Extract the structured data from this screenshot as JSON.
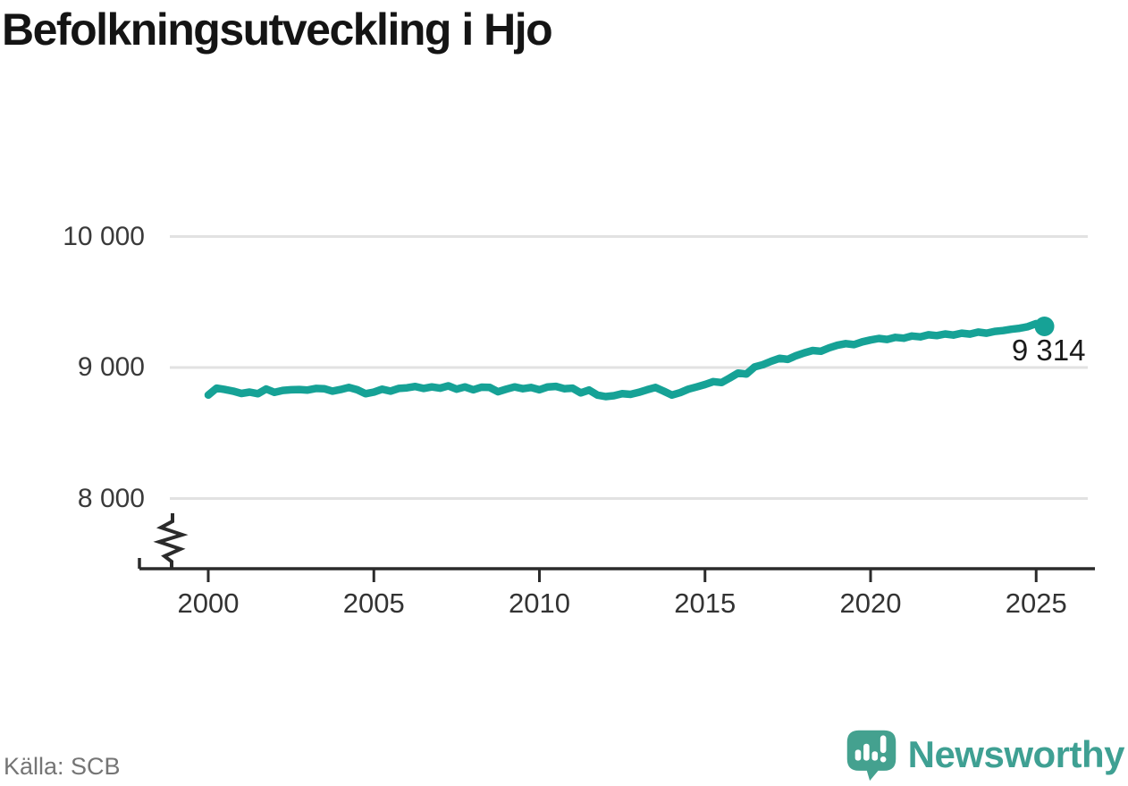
{
  "title": "Befolkningsutveckling i Hjo",
  "source": "Källa: SCB",
  "branding": {
    "name": "Newsworthy",
    "icon": "bar-chart-speech-bubble-icon",
    "color": "#3fa093"
  },
  "colors": {
    "line": "#16a296",
    "dot": "#16a296",
    "grid": "#e2e2e2",
    "axis": "#2b2b2b",
    "tick_text": "#3a3a3a",
    "end_label_text": "#1a1a1a"
  },
  "chart_data": {
    "type": "line",
    "title": "Befolkningsutveckling i Hjo",
    "source_label": "Källa: SCB",
    "end_label": "9 314",
    "end_value": 9314,
    "legend": "none",
    "grid": "horizontal",
    "x_axis": {
      "ticks": [
        2000,
        2005,
        2010,
        2015,
        2020,
        2025
      ],
      "range": [
        1998,
        2027
      ]
    },
    "y_axis": {
      "ticks": [
        {
          "label": "10 000",
          "value": 10000
        },
        {
          "label": "9 000",
          "value": 9000
        },
        {
          "label": "8 000",
          "value": 8000
        }
      ],
      "broken_axis": true
    },
    "series": [
      {
        "name": "population",
        "points": [
          [
            2000.0,
            8790
          ],
          [
            2000.25,
            8842
          ],
          [
            2000.5,
            8832
          ],
          [
            2000.75,
            8820
          ],
          [
            2001.0,
            8802
          ],
          [
            2001.25,
            8812
          ],
          [
            2001.5,
            8800
          ],
          [
            2001.75,
            8836
          ],
          [
            2002.0,
            8810
          ],
          [
            2002.25,
            8825
          ],
          [
            2002.5,
            8830
          ],
          [
            2002.75,
            8832
          ],
          [
            2003.0,
            8828
          ],
          [
            2003.25,
            8840
          ],
          [
            2003.5,
            8838
          ],
          [
            2003.75,
            8820
          ],
          [
            2004.0,
            8832
          ],
          [
            2004.25,
            8848
          ],
          [
            2004.5,
            8830
          ],
          [
            2004.75,
            8800
          ],
          [
            2005.0,
            8812
          ],
          [
            2005.25,
            8835
          ],
          [
            2005.5,
            8820
          ],
          [
            2005.75,
            8840
          ],
          [
            2006.0,
            8845
          ],
          [
            2006.25,
            8855
          ],
          [
            2006.5,
            8840
          ],
          [
            2006.75,
            8852
          ],
          [
            2007.0,
            8842
          ],
          [
            2007.25,
            8860
          ],
          [
            2007.5,
            8835
          ],
          [
            2007.75,
            8852
          ],
          [
            2008.0,
            8830
          ],
          [
            2008.25,
            8850
          ],
          [
            2008.5,
            8848
          ],
          [
            2008.75,
            8815
          ],
          [
            2009.0,
            8835
          ],
          [
            2009.25,
            8852
          ],
          [
            2009.5,
            8838
          ],
          [
            2009.75,
            8848
          ],
          [
            2010.0,
            8830
          ],
          [
            2010.25,
            8852
          ],
          [
            2010.5,
            8856
          ],
          [
            2010.75,
            8838
          ],
          [
            2011.0,
            8842
          ],
          [
            2011.25,
            8806
          ],
          [
            2011.5,
            8828
          ],
          [
            2011.75,
            8790
          ],
          [
            2012.0,
            8778
          ],
          [
            2012.25,
            8785
          ],
          [
            2012.5,
            8800
          ],
          [
            2012.75,
            8795
          ],
          [
            2013.0,
            8810
          ],
          [
            2013.25,
            8830
          ],
          [
            2013.5,
            8848
          ],
          [
            2013.75,
            8820
          ],
          [
            2014.0,
            8790
          ],
          [
            2014.25,
            8808
          ],
          [
            2014.5,
            8835
          ],
          [
            2014.75,
            8852
          ],
          [
            2015.0,
            8870
          ],
          [
            2015.25,
            8892
          ],
          [
            2015.5,
            8885
          ],
          [
            2015.75,
            8920
          ],
          [
            2016.0,
            8958
          ],
          [
            2016.25,
            8950
          ],
          [
            2016.5,
            9005
          ],
          [
            2016.75,
            9022
          ],
          [
            2017.0,
            9048
          ],
          [
            2017.25,
            9070
          ],
          [
            2017.5,
            9062
          ],
          [
            2017.75,
            9090
          ],
          [
            2018.0,
            9112
          ],
          [
            2018.25,
            9130
          ],
          [
            2018.5,
            9124
          ],
          [
            2018.75,
            9150
          ],
          [
            2019.0,
            9170
          ],
          [
            2019.25,
            9182
          ],
          [
            2019.5,
            9175
          ],
          [
            2019.75,
            9196
          ],
          [
            2020.0,
            9210
          ],
          [
            2020.25,
            9222
          ],
          [
            2020.5,
            9214
          ],
          [
            2020.75,
            9230
          ],
          [
            2021.0,
            9224
          ],
          [
            2021.25,
            9240
          ],
          [
            2021.5,
            9234
          ],
          [
            2021.75,
            9250
          ],
          [
            2022.0,
            9244
          ],
          [
            2022.25,
            9256
          ],
          [
            2022.5,
            9248
          ],
          [
            2022.75,
            9262
          ],
          [
            2023.0,
            9255
          ],
          [
            2023.25,
            9270
          ],
          [
            2023.5,
            9262
          ],
          [
            2023.75,
            9276
          ],
          [
            2024.0,
            9282
          ],
          [
            2024.25,
            9292
          ],
          [
            2024.5,
            9300
          ],
          [
            2024.75,
            9312
          ],
          [
            2025.0,
            9335
          ],
          [
            2025.25,
            9314
          ]
        ]
      }
    ]
  }
}
